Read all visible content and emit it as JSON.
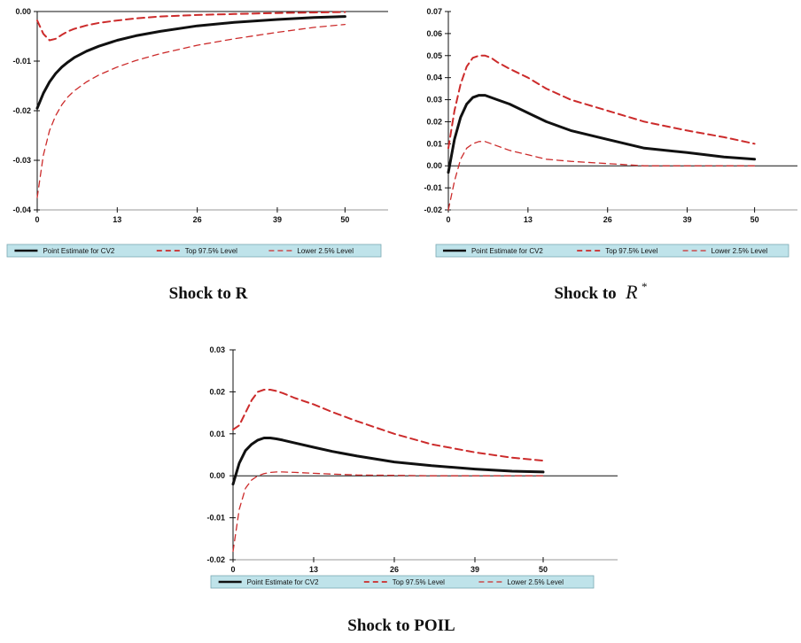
{
  "colors": {
    "point": "#111111",
    "bands": "#cc2b2b",
    "legend_bg": "#bfe3ea",
    "axis": "#111111"
  },
  "chart_data": [
    {
      "type": "line",
      "title": "Shock to R",
      "x": [
        0,
        1,
        2,
        3,
        4,
        5,
        6,
        8,
        10,
        13,
        16,
        20,
        26,
        32,
        39,
        45,
        50
      ],
      "x_ticks": [
        0,
        13,
        26,
        39,
        50
      ],
      "x_tick_labels": [
        "0",
        "13",
        "26",
        "39",
        "50"
      ],
      "xlim": [
        0,
        57
      ],
      "ylim": [
        -0.04,
        0.0
      ],
      "y_ticks": [
        -0.04,
        -0.03,
        -0.02,
        -0.01,
        0.0
      ],
      "y_tick_labels": [
        "-0.04",
        "-0.03",
        "-0.02",
        "-0.01",
        "0.00"
      ],
      "grid": false,
      "legend_position": "bottom",
      "series": [
        {
          "name": "Point Estimate for CV2",
          "style": "solid",
          "values": [
            -0.0195,
            -0.0165,
            -0.0142,
            -0.0125,
            -0.0112,
            -0.0102,
            -0.0093,
            -0.008,
            -0.007,
            -0.0058,
            -0.0049,
            -0.004,
            -0.0029,
            -0.0022,
            -0.0016,
            -0.0012,
            -0.001
          ]
        },
        {
          "name": "Top 97.5% Level",
          "style": "dashed",
          "values": [
            -0.0018,
            -0.0045,
            -0.0058,
            -0.0055,
            -0.0047,
            -0.004,
            -0.0035,
            -0.0028,
            -0.0023,
            -0.0018,
            -0.0014,
            -0.001,
            -0.0007,
            -0.0005,
            -0.0003,
            -0.0002,
            -0.0001
          ]
        },
        {
          "name": "Lower 2.5% Level",
          "style": "dashed",
          "values": [
            -0.0375,
            -0.029,
            -0.024,
            -0.021,
            -0.0188,
            -0.0172,
            -0.016,
            -0.0142,
            -0.0128,
            -0.0112,
            -0.0099,
            -0.0085,
            -0.0068,
            -0.0055,
            -0.0042,
            -0.0032,
            -0.0026
          ]
        }
      ]
    },
    {
      "type": "line",
      "title": "Shock to",
      "title_symbol": "R",
      "title_superscript": "*",
      "x": [
        0,
        1,
        2,
        3,
        4,
        5,
        6,
        7,
        8,
        10,
        13,
        16,
        20,
        26,
        32,
        39,
        45,
        50
      ],
      "x_ticks": [
        0,
        13,
        26,
        39,
        50
      ],
      "x_tick_labels": [
        "0",
        "13",
        "26",
        "39",
        "50"
      ],
      "xlim": [
        0,
        57
      ],
      "ylim": [
        -0.02,
        0.07
      ],
      "y_ticks": [
        -0.02,
        -0.01,
        0.0,
        0.01,
        0.02,
        0.03,
        0.04,
        0.05,
        0.06,
        0.07
      ],
      "y_tick_labels": [
        "-0.02",
        "-0.01",
        "0.00",
        "0.01",
        "0.02",
        "0.03",
        "0.04",
        "0.05",
        "0.06",
        "0.07"
      ],
      "grid": false,
      "legend_position": "bottom",
      "series": [
        {
          "name": "Point Estimate for CV2",
          "style": "solid",
          "values": [
            -0.003,
            0.012,
            0.022,
            0.028,
            0.031,
            0.032,
            0.032,
            0.031,
            0.03,
            0.028,
            0.024,
            0.02,
            0.016,
            0.012,
            0.008,
            0.006,
            0.004,
            0.003
          ]
        },
        {
          "name": "Top 97.5% Level",
          "style": "dashed",
          "values": [
            0.008,
            0.025,
            0.037,
            0.045,
            0.049,
            0.05,
            0.05,
            0.049,
            0.047,
            0.044,
            0.04,
            0.035,
            0.03,
            0.025,
            0.02,
            0.016,
            0.013,
            0.01
          ]
        },
        {
          "name": "Lower 2.5% Level",
          "style": "dashed",
          "values": [
            -0.02,
            -0.007,
            0.003,
            0.008,
            0.01,
            0.011,
            0.011,
            0.01,
            0.009,
            0.007,
            0.005,
            0.003,
            0.002,
            0.001,
            0.0,
            0.0,
            0.0,
            0.0
          ]
        }
      ]
    },
    {
      "type": "line",
      "title": "Shock to POIL",
      "x": [
        0,
        1,
        2,
        3,
        4,
        5,
        6,
        7,
        8,
        10,
        13,
        16,
        20,
        26,
        32,
        39,
        45,
        50
      ],
      "x_ticks": [
        0,
        13,
        26,
        39,
        50
      ],
      "x_tick_labels": [
        "0",
        "13",
        "26",
        "39",
        "50"
      ],
      "xlim": [
        0,
        62
      ],
      "ylim": [
        -0.02,
        0.03
      ],
      "y_ticks": [
        -0.02,
        -0.01,
        0.0,
        0.01,
        0.02,
        0.03
      ],
      "y_tick_labels": [
        "-0.02",
        "-0.01",
        "0.00",
        "0.01",
        "0.02",
        "0.03"
      ],
      "grid": false,
      "legend_position": "bottom",
      "series": [
        {
          "name": "Point Estimate for CV2",
          "style": "solid",
          "values": [
            -0.002,
            0.003,
            0.006,
            0.0075,
            0.0085,
            0.009,
            0.009,
            0.0088,
            0.0085,
            0.0078,
            0.0068,
            0.0058,
            0.0047,
            0.0033,
            0.0024,
            0.0016,
            0.0011,
            0.0009
          ]
        },
        {
          "name": "Top 97.5% Level",
          "style": "dashed",
          "values": [
            0.011,
            0.012,
            0.015,
            0.018,
            0.02,
            0.0205,
            0.0205,
            0.0202,
            0.0197,
            0.0185,
            0.017,
            0.0152,
            0.013,
            0.01,
            0.0075,
            0.0056,
            0.0043,
            0.0036
          ]
        },
        {
          "name": "Lower 2.5% Level",
          "style": "dashed",
          "values": [
            -0.018,
            -0.008,
            -0.003,
            -0.001,
            0.0,
            0.0005,
            0.0008,
            0.0009,
            0.0009,
            0.0008,
            0.0006,
            0.0004,
            0.0002,
            0.0001,
            0.0,
            0.0,
            0.0,
            0.0
          ]
        }
      ]
    }
  ]
}
